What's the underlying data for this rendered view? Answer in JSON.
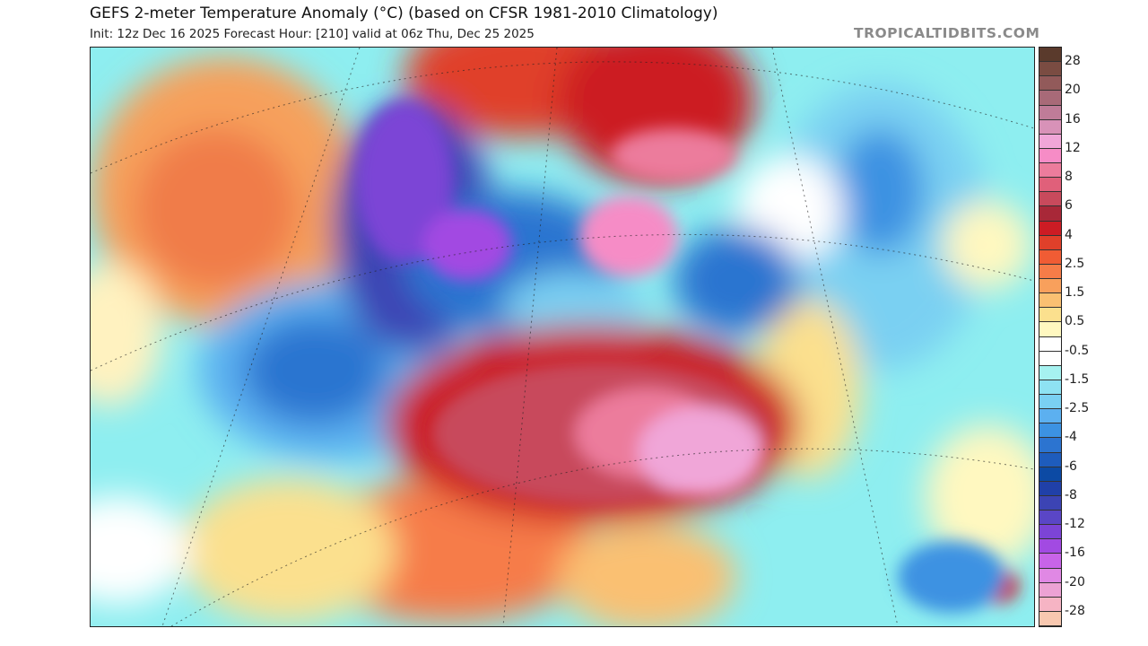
{
  "header": {
    "title": "GEFS 2-meter Temperature Anomaly (°C) (based on CFSR 1981-2010 Climatology)",
    "subtitle": "Init: 12z Dec 16 2025   Forecast Hour: [210]   valid at 06z Thu, Dec 25 2025",
    "brand": "TROPICALTIDBITS.COM"
  },
  "colorbar": {
    "labels": [
      "28",
      "20",
      "16",
      "12",
      "8",
      "6",
      "4",
      "2.5",
      "1.5",
      "0.5",
      "-0.5",
      "-1.5",
      "-2.5",
      "-4",
      "-6",
      "-8",
      "-12",
      "-16",
      "-20",
      "-28"
    ],
    "colors": [
      "#5a3a2c",
      "#7a4c42",
      "#925a5a",
      "#a86a78",
      "#bf7c98",
      "#d892b8",
      "#f0a6d8",
      "#f68cc6",
      "#ec7c9c",
      "#e0607a",
      "#c84a5c",
      "#a82838",
      "#cc1c24",
      "#e0402a",
      "#f05c34",
      "#f67c48",
      "#f8a05c",
      "#fac072",
      "#fbe08e",
      "#fff8c0",
      "#ffffff",
      "#ffffff",
      "#a6f2f0",
      "#8ee2f2",
      "#7ad0f2",
      "#5cb0f0",
      "#3c92e2",
      "#2c74d0",
      "#1e5cbc",
      "#0c4aa4",
      "#2040a8",
      "#3c44b4",
      "#5a46c6",
      "#7c44d6",
      "#a24ae2",
      "#c864e8",
      "#e088e4",
      "#eca2d4",
      "#f6b4c4",
      "#f8c8b0"
    ]
  }
}
